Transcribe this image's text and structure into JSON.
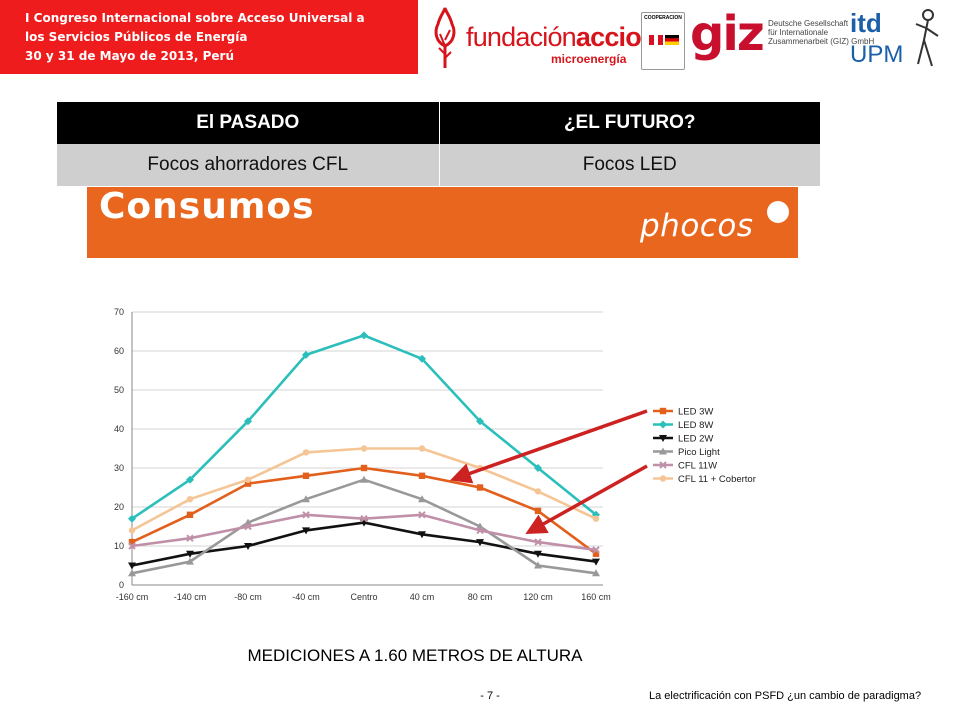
{
  "header": {
    "event_lines": [
      "I Congreso Internacional sobre Acceso Universal a",
      "los Servicios Públicos de Energía",
      "30 y 31 de Mayo de 2013, Perú"
    ],
    "logo_fundacion": {
      "name_light": "fundación",
      "name_bold": "acciona",
      "sub": "microenergía"
    },
    "logo_cooperacion": {
      "label": "COOPERACION"
    },
    "logo_giz": {
      "mark": "giz",
      "desc_lines": [
        "Deutsche Gesellschaft",
        "für Internationale",
        "Zusammenarbeit (GIZ) GmbH"
      ]
    },
    "logo_itd": {
      "top": "itd",
      "bottom": "UPM"
    }
  },
  "comparison_table": {
    "headers": [
      "El PASADO",
      "¿EL FUTURO?"
    ],
    "rows": [
      [
        "Focos ahorradores CFL",
        "Focos LED"
      ]
    ]
  },
  "banner": {
    "title": "Consumos",
    "brand": "phocos"
  },
  "chart_data": {
    "type": "line",
    "x": [
      "-160 cm",
      "-140 cm",
      "-80 cm",
      "-40 cm",
      "Centro",
      "40 cm",
      "80 cm",
      "120 cm",
      "160 cm"
    ],
    "ylim": [
      0,
      70
    ],
    "yticks": [
      0,
      10,
      20,
      30,
      40,
      50,
      60,
      70
    ],
    "grid": true,
    "legend": "right",
    "series": [
      {
        "name": "LED 3W",
        "color": "#e2601c",
        "marker": "square",
        "values": [
          11,
          18,
          26,
          28,
          30,
          28,
          25,
          19,
          8
        ]
      },
      {
        "name": "LED 8W",
        "color": "#2bbfbb",
        "marker": "diamond",
        "values": [
          17,
          27,
          42,
          59,
          64,
          58,
          42,
          30,
          18
        ]
      },
      {
        "name": "LED 2W",
        "color": "#111111",
        "marker": "triangle-down",
        "values": [
          5,
          8,
          10,
          14,
          16,
          13,
          11,
          8,
          6
        ]
      },
      {
        "name": "Pico Light",
        "color": "#999999",
        "marker": "triangle-up",
        "values": [
          3,
          6,
          16,
          22,
          27,
          22,
          15,
          5,
          3
        ]
      },
      {
        "name": "CFL 11W",
        "color": "#c090a8",
        "marker": "cross",
        "values": [
          10,
          12,
          15,
          18,
          17,
          18,
          14,
          11,
          9
        ]
      },
      {
        "name": "CFL 11 + Cobertor",
        "color": "#f5c596",
        "marker": "circle",
        "values": [
          14,
          22,
          27,
          34,
          35,
          35,
          30,
          24,
          17
        ]
      }
    ],
    "caption": "MEDICIONES A 1.60 METROS DE ALTURA",
    "arrow_color": "#cc2222"
  },
  "footer": {
    "page": "- 7 -",
    "note": "La electrificación con PSFD ¿un cambio de paradigma?"
  }
}
